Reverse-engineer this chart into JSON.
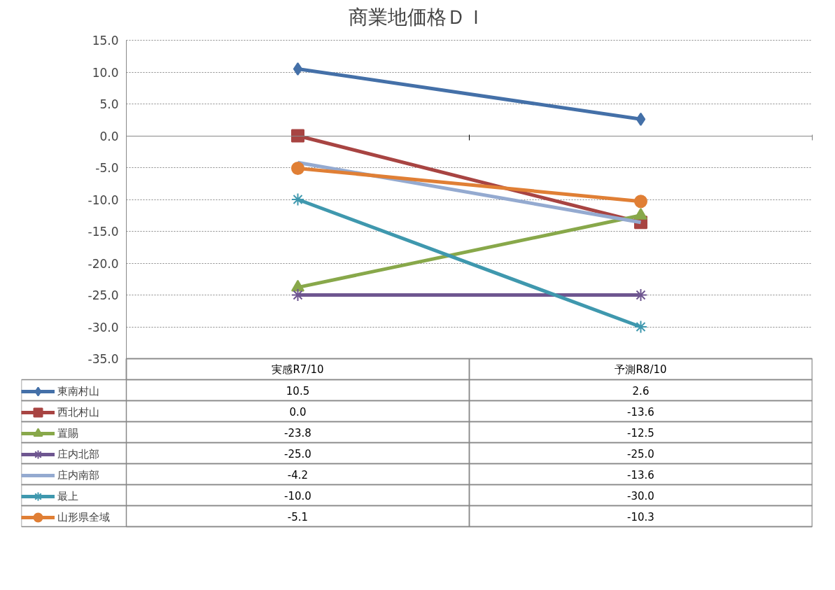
{
  "chart_data": {
    "type": "line",
    "title": "商業地価格ＤＩ",
    "categories": [
      "実感R7/10",
      "予測R8/10"
    ],
    "ylim": [
      -35,
      15
    ],
    "yticks": [
      {
        "value": -35,
        "label": "-35.0"
      },
      {
        "value": -30,
        "label": "-30.0"
      },
      {
        "value": -25,
        "label": "-25.0"
      },
      {
        "value": -20,
        "label": "-20.0"
      },
      {
        "value": -15,
        "label": "-15.0"
      },
      {
        "value": -10,
        "label": "-10.0"
      },
      {
        "value": -5,
        "label": "-5.0"
      },
      {
        "value": 0,
        "label": "0.0"
      },
      {
        "value": 5,
        "label": "5.0"
      },
      {
        "value": 10,
        "label": "10.0"
      },
      {
        "value": 15,
        "label": "15.0"
      }
    ],
    "grid": "y",
    "legend": "bottom left",
    "series": [
      {
        "name": "東南村山",
        "color": "#4470a8",
        "marker": "diamond",
        "values": [
          10.5,
          2.6
        ],
        "value_labels": [
          "10.5",
          "2.6"
        ]
      },
      {
        "name": "西北村山",
        "color": "#a84442",
        "marker": "square",
        "values": [
          0.0,
          -13.6
        ],
        "value_labels": [
          "0.0",
          "-13.6"
        ]
      },
      {
        "name": "置賜",
        "color": "#88a84a",
        "marker": "triangle",
        "values": [
          -23.8,
          -12.5
        ],
        "value_labels": [
          "-23.8",
          "-12.5"
        ]
      },
      {
        "name": "庄内北部",
        "color": "#6e5690",
        "marker": "cross",
        "values": [
          -25.0,
          -25.0
        ],
        "value_labels": [
          "-25.0",
          "-25.0"
        ]
      },
      {
        "name": "庄内南部",
        "color": "#94aad0",
        "marker": "none",
        "values": [
          -4.2,
          -13.6
        ],
        "value_labels": [
          "-4.2",
          "-13.6"
        ]
      },
      {
        "name": "最上",
        "color": "#3f98ae",
        "marker": "cross",
        "values": [
          -10.0,
          -30.0
        ],
        "value_labels": [
          "-10.0",
          "-30.0"
        ]
      },
      {
        "name": "山形県全域",
        "color": "#e07f35",
        "marker": "circle",
        "values": [
          -5.1,
          -10.3
        ],
        "value_labels": [
          "-5.1",
          "-10.3"
        ]
      }
    ]
  }
}
